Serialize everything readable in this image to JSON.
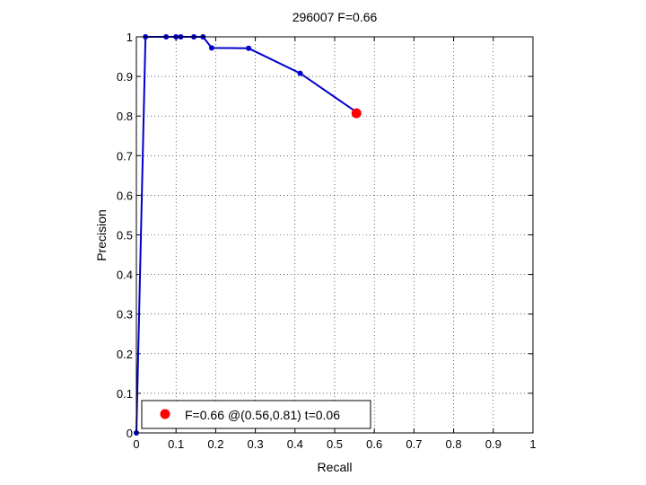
{
  "chart_data": {
    "type": "line",
    "title": "296007 F=0.66",
    "xlabel": "Recall",
    "ylabel": "Precision",
    "xlim": [
      0,
      1
    ],
    "ylim": [
      0,
      1
    ],
    "xticks": [
      "0",
      "0.1",
      "0.2",
      "0.3",
      "0.4",
      "0.5",
      "0.6",
      "0.7",
      "0.8",
      "0.9",
      "1"
    ],
    "yticks": [
      "0",
      "0.1",
      "0.2",
      "0.3",
      "0.4",
      "0.5",
      "0.6",
      "0.7",
      "0.8",
      "0.9",
      "1"
    ],
    "grid": true,
    "legend_position": "bottom-left",
    "series": [
      {
        "color": "#0000cc",
        "x": [
          0.0,
          0.023,
          0.075,
          0.1,
          0.112,
          0.145,
          0.168,
          0.19,
          0.283,
          0.413,
          0.555
        ],
        "y": [
          0.0,
          1.0,
          1.0,
          1.0,
          1.0,
          1.0,
          1.0,
          0.972,
          0.971,
          0.908,
          0.81
        ]
      }
    ],
    "highlight": {
      "x": 0.555,
      "y": 0.807,
      "color": "#ff0000",
      "legend_label": "F=0.66 @(0.56,0.81) t=0.06"
    }
  }
}
